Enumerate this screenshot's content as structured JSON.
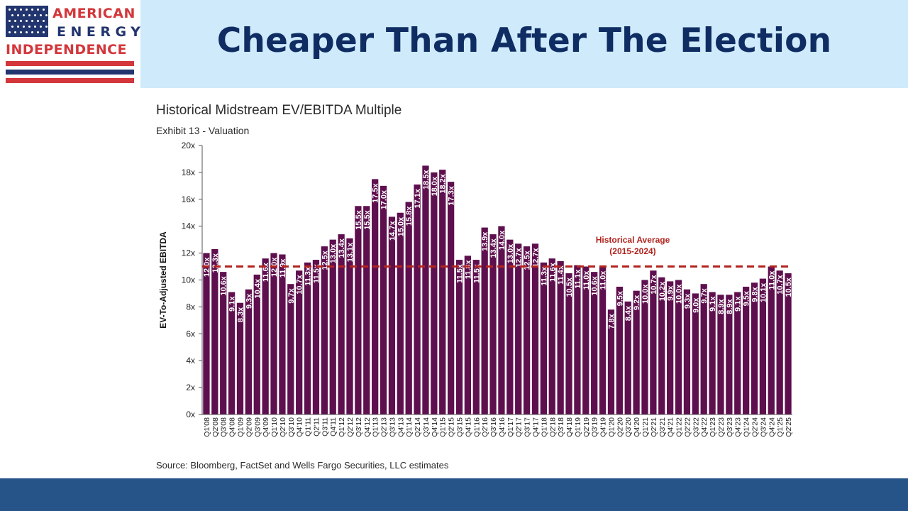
{
  "slide": {
    "title": "Cheaper Than After The Election",
    "logo": {
      "line1": "AMERICAN",
      "line2": "ENERGY",
      "line3": "INDEPENDENCE"
    }
  },
  "colors": {
    "header_band": "#cfeafb",
    "title": "#0f2d62",
    "bar": "#5e0f4e",
    "average_line": "#b3241f",
    "footer_band": "#265488",
    "logo_red": "#d3373b",
    "logo_navy": "#22356e"
  },
  "chart_data": {
    "type": "bar",
    "title": "Historical Midstream EV/EBITDA Multiple",
    "subtitle": "Exhibit 13 - Valuation",
    "ylabel": "EV-To-Adjusted EBITDA",
    "xlabel": "",
    "source": "Source: Bloomberg, FactSet and Wells Fargo Securities, LLC estimates",
    "ylim": [
      0,
      20
    ],
    "yticks": [
      "0x",
      "2x",
      "4x",
      "6x",
      "8x",
      "10x",
      "12x",
      "14x",
      "16x",
      "18x",
      "20x"
    ],
    "grid": false,
    "categories": [
      "Q1'08",
      "Q2'08",
      "Q3'08",
      "Q4'08",
      "Q1'09",
      "Q2'09",
      "Q3'09",
      "Q4'09",
      "Q1'10",
      "Q2'10",
      "Q3'10",
      "Q4'10",
      "Q1'11",
      "Q2'11",
      "Q3'11",
      "Q4'11",
      "Q1'12",
      "Q2'12",
      "Q3'12",
      "Q4'12",
      "Q1'13",
      "Q2'13",
      "Q3'13",
      "Q4'13",
      "Q1'14",
      "Q2'14",
      "Q3'14",
      "Q4'14",
      "Q1'15",
      "Q2'15",
      "Q3'15",
      "Q4'15",
      "Q1'16",
      "Q2'16",
      "Q3'16",
      "Q4'16",
      "Q1'17",
      "Q2'17",
      "Q3'17",
      "Q4'17",
      "Q1'18",
      "Q2'18",
      "Q3'18",
      "Q4'18",
      "Q1'19",
      "Q2'19",
      "Q3'19",
      "Q4'19",
      "Q1'20",
      "Q2'20",
      "Q3'20",
      "Q4'20",
      "Q1'21",
      "Q2'21",
      "Q3'21",
      "Q4'21",
      "Q1'22",
      "Q2'22",
      "Q3'22",
      "Q4'22",
      "Q1'23",
      "Q2'23",
      "Q3'23",
      "Q4'23",
      "Q1'24",
      "Q2'24",
      "Q3'24",
      "Q4'24",
      "Q1'25",
      "Q2'25"
    ],
    "x_tick_labels": [
      "Q1'08",
      "Q2'08",
      "Q3'08",
      "Q4'08",
      "Q1'09",
      "Q2'09",
      "Q3'09",
      "Q4'09",
      "Q1'10",
      "Q2'10",
      "Q3'10",
      "Q4'10",
      "Q1'11",
      "Q2'11",
      "Q3'11",
      "Q4'11",
      "Q1'12",
      "Q2'12",
      "Q3'12",
      "Q4'12",
      "Q1'13",
      "Q2'13",
      "Q3'13",
      "Q4'13",
      "Q1'14",
      "Q2'14",
      "Q3'14",
      "Q4'14",
      "Q1'15",
      "Q2'15",
      "Q3'15",
      "Q4'15",
      "Q1'16",
      "Q2'16",
      "Q3'16",
      "Q4'16",
      "Q1'17",
      "Q2'17",
      "Q3'17",
      "Q4'17",
      "Q1'18",
      "Q2'18",
      "Q3'18",
      "Q4'18",
      "Q1'19",
      "Q2'19",
      "Q3'19",
      "Q4'19",
      "Q1'20",
      "Q2'20",
      "Q3'20",
      "Q4'20",
      "Q1'21",
      "Q2'21",
      "Q3'21",
      "Q4'21",
      "Q1'22",
      "Q2'22",
      "Q3'22",
      "Q4'22",
      "Q1'23",
      "Q2'23",
      "Q3'23",
      "Q4'23",
      "Q1'24",
      "Q2'24",
      "Q3'24",
      "Q4'24",
      "Q1'25",
      "Q2'25"
    ],
    "values": [
      12.0,
      12.3,
      10.6,
      9.1,
      8.3,
      9.3,
      10.4,
      11.6,
      12.0,
      11.9,
      9.7,
      10.7,
      11.3,
      11.5,
      12.5,
      13.0,
      13.4,
      13.1,
      15.5,
      15.5,
      17.5,
      17.0,
      14.7,
      15.0,
      15.8,
      17.1,
      18.5,
      18.0,
      18.2,
      17.3,
      11.5,
      11.8,
      11.5,
      13.9,
      13.4,
      14.0,
      13.0,
      12.7,
      12.5,
      12.7,
      11.3,
      11.6,
      11.4,
      10.5,
      11.1,
      11.0,
      10.6,
      11.0,
      7.8,
      9.5,
      8.4,
      9.2,
      10.0,
      10.7,
      10.2,
      9.9,
      10.0,
      9.3,
      9.0,
      9.7,
      9.1,
      8.9,
      8.9,
      9.1,
      9.5,
      9.8,
      10.1,
      11.0,
      10.7,
      10.5
    ],
    "data_labels": [
      "12.0x",
      "12.3x",
      "10.6x",
      "9.1x",
      "8.3x",
      "9.3x",
      "10.4x",
      "11.6x",
      "12.0x",
      "11.9x",
      "9.7x",
      "10.7x",
      "11.3x",
      "11.5x",
      "12.5x",
      "13.0x",
      "13.4x",
      "13.1x",
      "15.5x",
      "15.5x",
      "17.5x",
      "17.0x",
      "14.7x",
      "15.0x",
      "15.8x",
      "17.1x",
      "18.5x",
      "18.0x",
      "18.2x",
      "17.3x",
      "11.5x",
      "11.8x",
      "11.5x",
      "13.9x",
      "13.4x",
      "14.0x",
      "13.0x",
      "12.7x",
      "12.5x",
      "12.7x",
      "11.3x",
      "11.6x",
      "11.4x",
      "10.5x",
      "11.1x",
      "11.0x",
      "10.6x",
      "11.0x",
      "7.8x",
      "9.5x",
      "8.4x",
      "9.2x",
      "10.0x",
      "10.7x",
      "10.2x",
      "9.9x",
      "10.0x",
      "9.3x",
      "9.0x",
      "9.7x",
      "9.1x",
      "8.9x",
      "8.9x",
      "9.1x",
      "9.5x",
      "9.8x",
      "10.1x",
      "11.0x",
      "10.7x",
      "10.5x"
    ],
    "reference_line": {
      "value": 11.0,
      "style": "dashed",
      "label_line1": "Historical Average",
      "label_line2": "(2015-2024)"
    }
  }
}
